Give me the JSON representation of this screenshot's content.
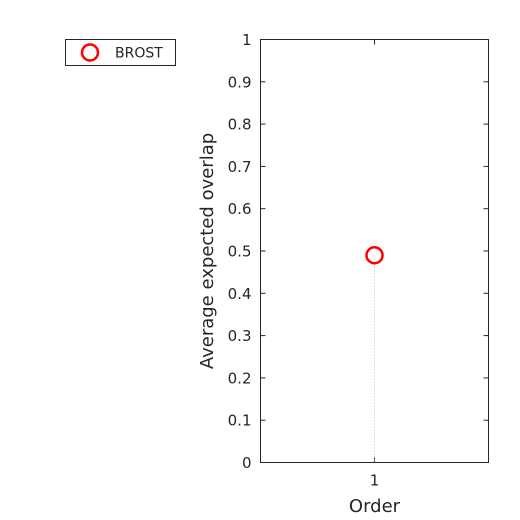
{
  "chart_data": {
    "type": "scatter",
    "xlabel": "Order",
    "ylabel": "Average expected overlap",
    "categories": [
      "1"
    ],
    "ylim": [
      0,
      1
    ],
    "yticks": [
      0,
      0.1,
      0.2,
      0.3,
      0.4,
      0.5,
      0.6,
      0.7,
      0.8,
      0.9,
      1
    ],
    "ytick_labels": [
      "0",
      "0.1",
      "0.2",
      "0.3",
      "0.4",
      "0.5",
      "0.6",
      "0.7",
      "0.8",
      "0.9",
      "1"
    ],
    "legend_position": "outside-left-top",
    "grid": false,
    "series": [
      {
        "name": "BROST",
        "x": 1,
        "y": 0.49,
        "marker": "circle-open",
        "color": "#ff0000"
      }
    ]
  }
}
